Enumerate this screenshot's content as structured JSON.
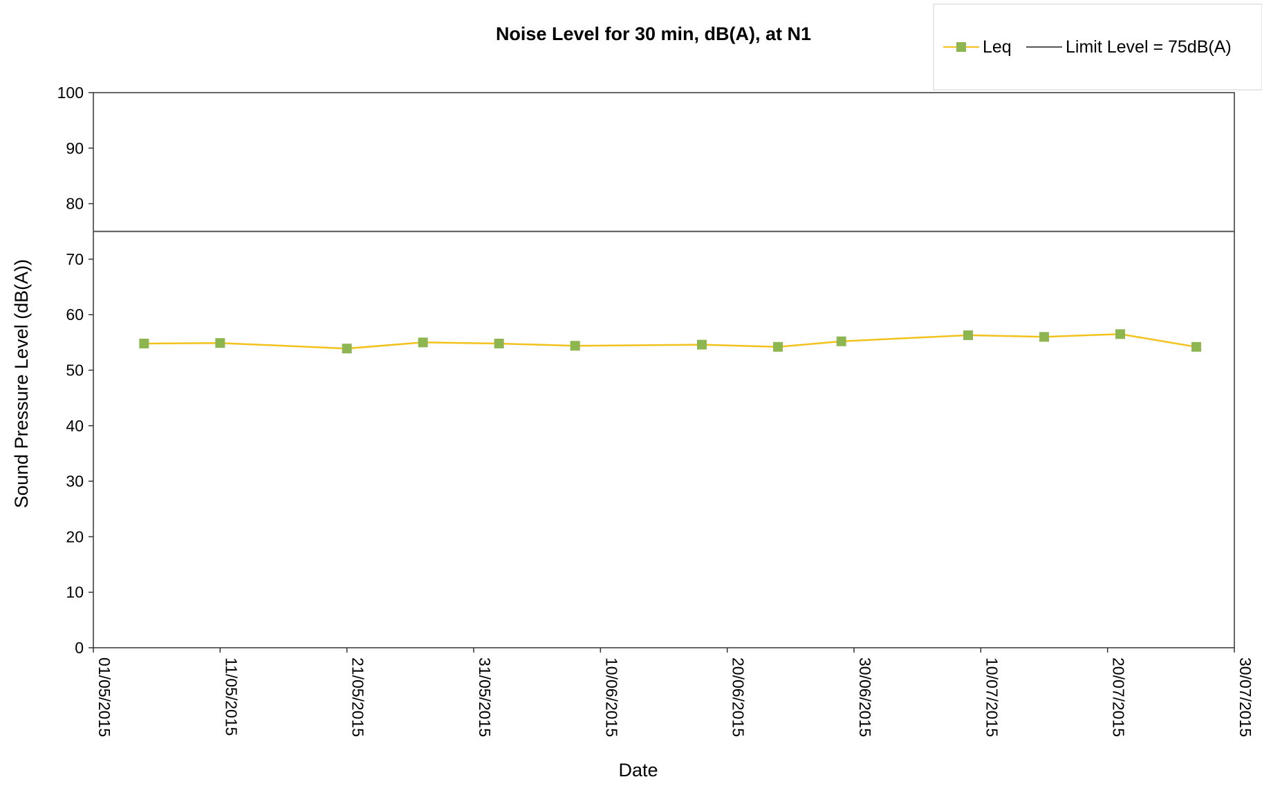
{
  "chart_data": {
    "type": "line",
    "title": "Noise Level for 30 min, dB(A), at N1",
    "xlabel": "Date",
    "ylabel": "Sound Pressure Level (dB(A))",
    "ylim": [
      0,
      100
    ],
    "yticks": [
      0,
      10,
      20,
      30,
      40,
      50,
      60,
      70,
      80,
      90,
      100
    ],
    "xlim": [
      "01/05/2015",
      "30/07/2015"
    ],
    "xticks": [
      "01/05/2015",
      "11/05/2015",
      "21/05/2015",
      "31/05/2015",
      "10/06/2015",
      "20/06/2015",
      "30/06/2015",
      "10/07/2015",
      "20/07/2015",
      "30/07/2015"
    ],
    "grid": false,
    "legend_position": "top-right",
    "series": [
      {
        "name": "Leq",
        "line_color": "#f2c21b",
        "marker_color": "#8db550",
        "marker": "square",
        "x": [
          "05/05/2015",
          "11/05/2015",
          "21/05/2015",
          "27/05/2015",
          "02/06/2015",
          "08/06/2015",
          "18/06/2015",
          "24/06/2015",
          "29/06/2015",
          "09/07/2015",
          "15/07/2015",
          "21/07/2015",
          "27/07/2015"
        ],
        "values": [
          54.8,
          54.9,
          53.9,
          55.0,
          54.8,
          54.4,
          54.6,
          54.2,
          55.2,
          56.3,
          56.0,
          56.5,
          54.2
        ]
      },
      {
        "name": "Limit Level = 75dB(A)",
        "line_color": "#555555",
        "constant": 75
      }
    ]
  }
}
